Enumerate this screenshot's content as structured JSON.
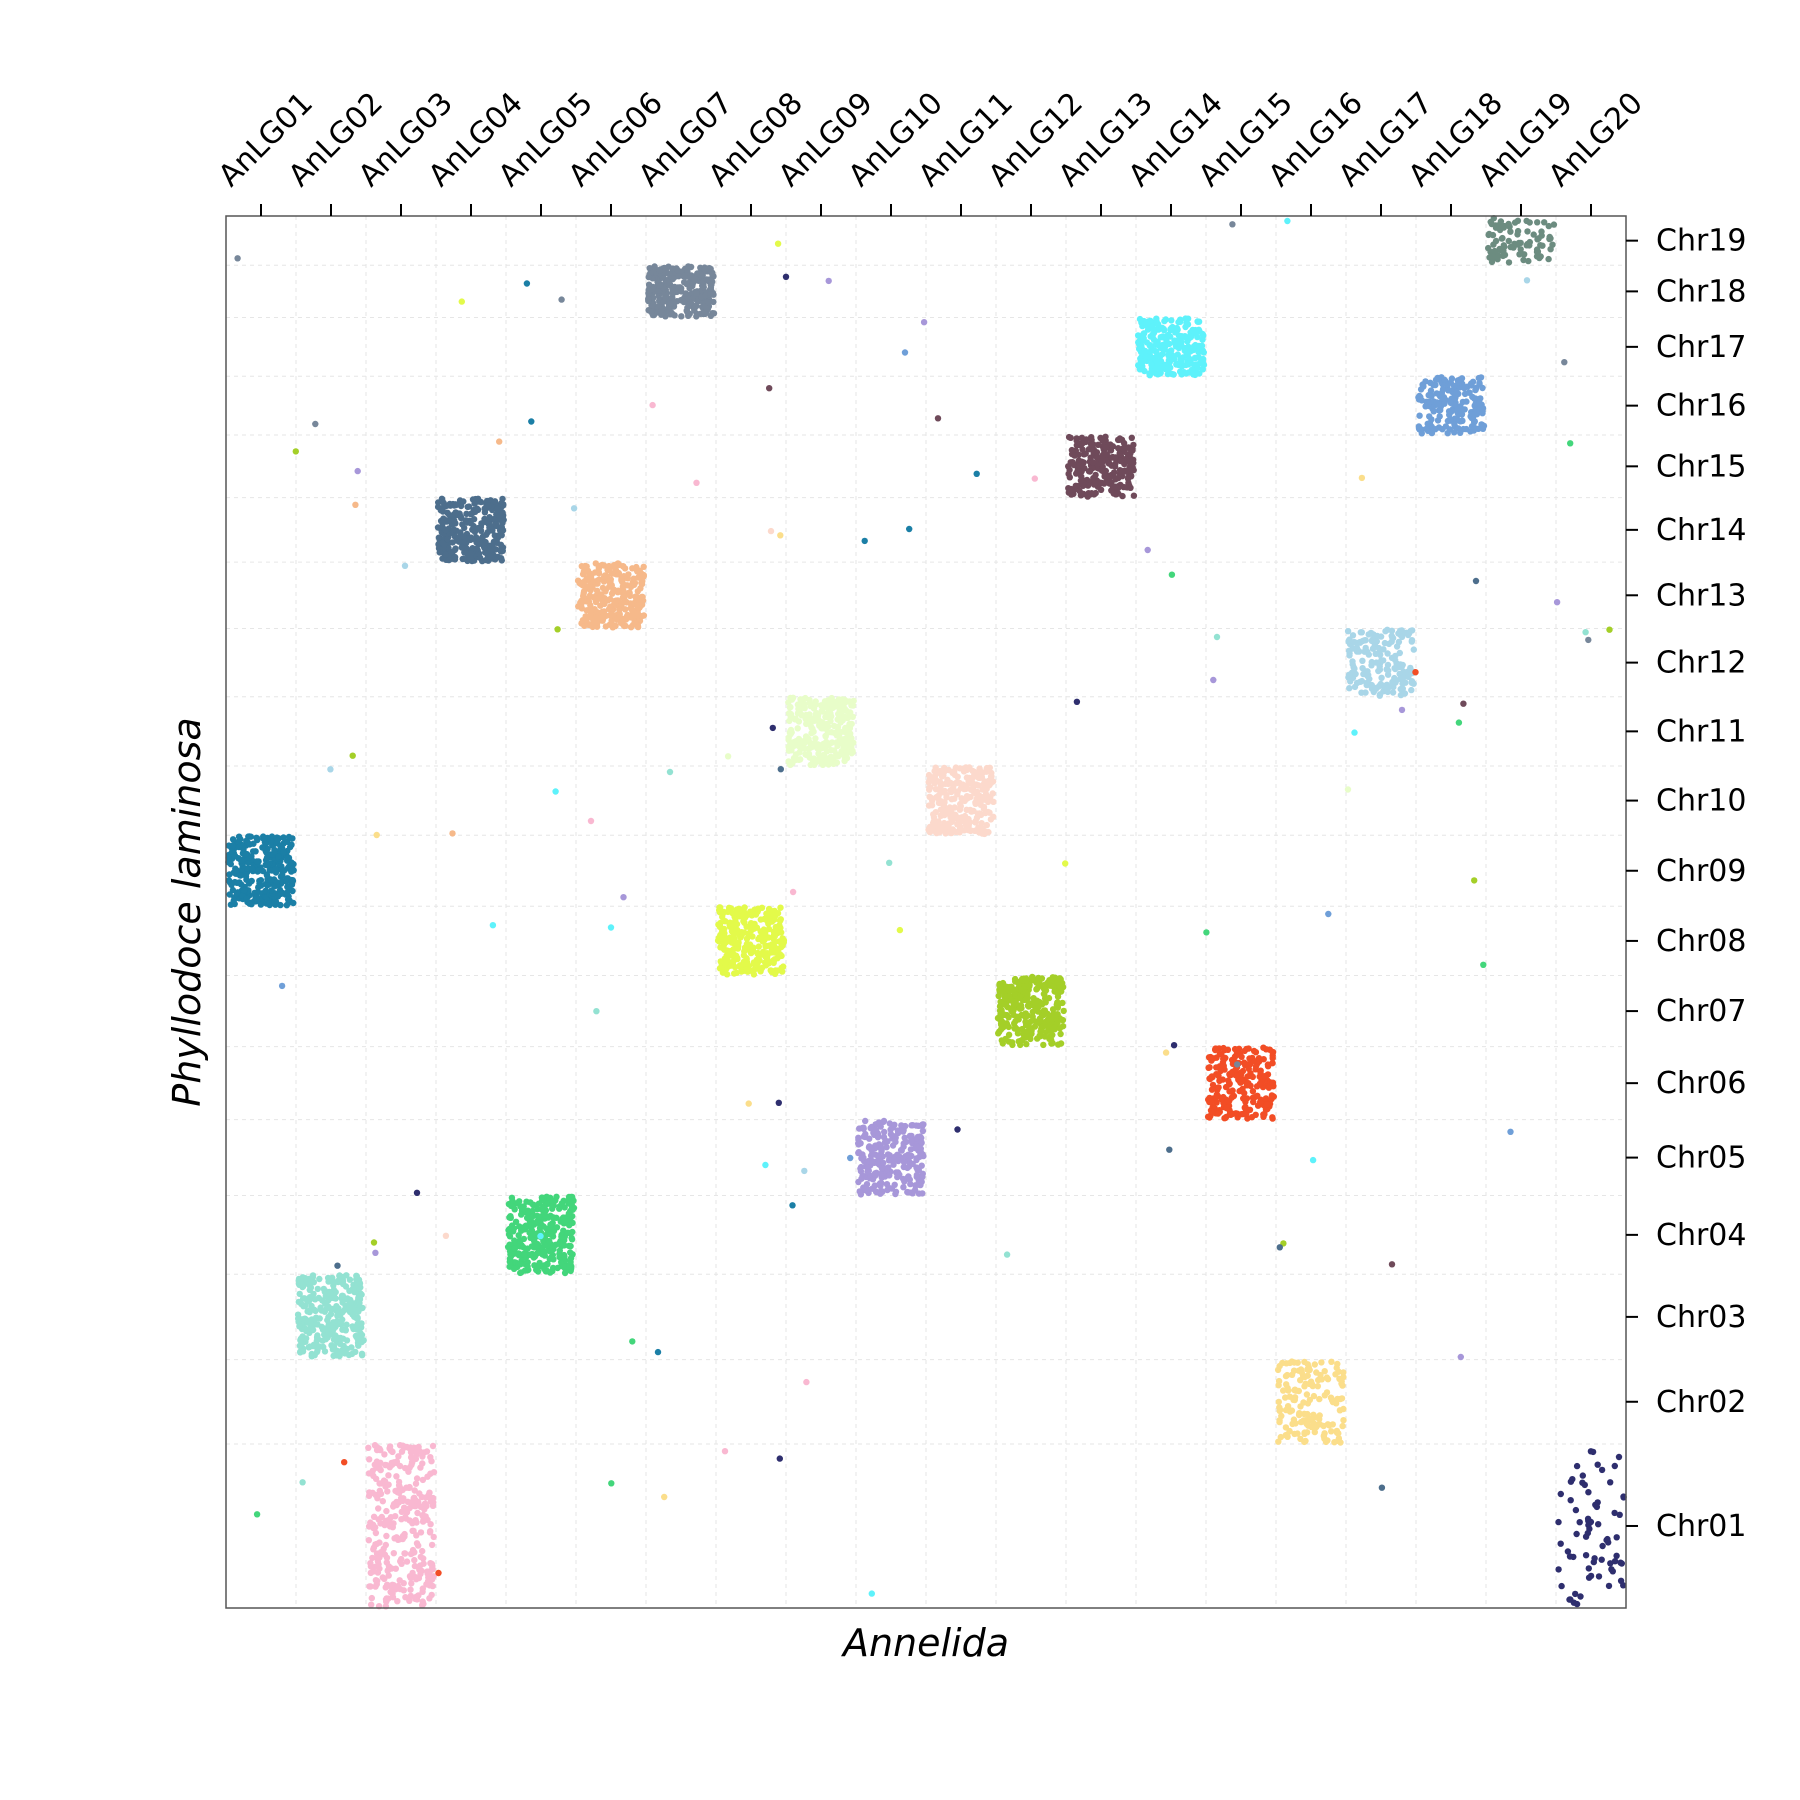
{
  "chart_data": {
    "type": "scatter",
    "xlabel": "Annelida",
    "ylabel": "Phyllodoce laminosa",
    "x_categories": [
      "AnLG01",
      "AnLG02",
      "AnLG03",
      "AnLG04",
      "AnLG05",
      "AnLG06",
      "AnLG07",
      "AnLG08",
      "AnLG09",
      "AnLG10",
      "AnLG11",
      "AnLG12",
      "AnLG13",
      "AnLG14",
      "AnLG15",
      "AnLG16",
      "AnLG17",
      "AnLG18",
      "AnLG19",
      "AnLG20"
    ],
    "y_categories": [
      "Chr01",
      "Chr02",
      "Chr03",
      "Chr04",
      "Chr05",
      "Chr06",
      "Chr07",
      "Chr08",
      "Chr09",
      "Chr10",
      "Chr11",
      "Chr12",
      "Chr13",
      "Chr14",
      "Chr15",
      "Chr16",
      "Chr17",
      "Chr18",
      "Chr19"
    ],
    "y_boundaries": [
      0,
      1.73,
      2.62,
      3.52,
      4.35,
      5.15,
      5.92,
      6.67,
      7.4,
      8.15,
      8.88,
      9.61,
      10.33,
      11.03,
      11.71,
      12.37,
      12.99,
      13.61,
      14.16,
      14.68
    ],
    "grid": true,
    "clusters": [
      {
        "x": "AnLG01",
        "y": "Chr09",
        "color": "#1b7fa6",
        "n": 320
      },
      {
        "x": "AnLG02",
        "y": "Chr03",
        "color": "#93e2d2",
        "n": 300
      },
      {
        "x": "AnLG03",
        "y": "Chr01",
        "color": "#f9b8d1",
        "n": 330
      },
      {
        "x": "AnLG04",
        "y": "Chr14",
        "color": "#4d6e8c",
        "n": 290
      },
      {
        "x": "AnLG05",
        "y": "Chr04",
        "color": "#43d67b",
        "n": 300
      },
      {
        "x": "AnLG06",
        "y": "Chr13",
        "color": "#f6b98a",
        "n": 290
      },
      {
        "x": "AnLG07",
        "y": "Chr18",
        "color": "#77879a",
        "n": 300
      },
      {
        "x": "AnLG08",
        "y": "Chr08",
        "color": "#e3fa4a",
        "n": 290
      },
      {
        "x": "AnLG09",
        "y": "Chr11",
        "color": "#e8fdc9",
        "n": 280
      },
      {
        "x": "AnLG10",
        "y": "Chr05",
        "color": "#a797d9",
        "n": 250
      },
      {
        "x": "AnLG11",
        "y": "Chr10",
        "color": "#fcd9cc",
        "n": 270
      },
      {
        "x": "AnLG12",
        "y": "Chr07",
        "color": "#a4cf28",
        "n": 290
      },
      {
        "x": "AnLG13",
        "y": "Chr15",
        "color": "#6f4a5a",
        "n": 250
      },
      {
        "x": "AnLG14",
        "y": "Chr17",
        "color": "#5ef2fb",
        "n": 260
      },
      {
        "x": "AnLG15",
        "y": "Chr06",
        "color": "#f24d25",
        "n": 230
      },
      {
        "x": "AnLG16",
        "y": "Chr02",
        "color": "#fbde8b",
        "n": 160
      },
      {
        "x": "AnLG17",
        "y": "Chr12",
        "color": "#a9d6e8",
        "n": 180
      },
      {
        "x": "AnLG18",
        "y": "Chr16",
        "color": "#6f9fd8",
        "n": 190
      },
      {
        "x": "AnLG19",
        "y": "Chr19",
        "color": "#6c8c80",
        "n": 90
      },
      {
        "x": "AnLG20",
        "y": "Chr01",
        "color": "#2e2e6e",
        "n": 70
      }
    ]
  }
}
